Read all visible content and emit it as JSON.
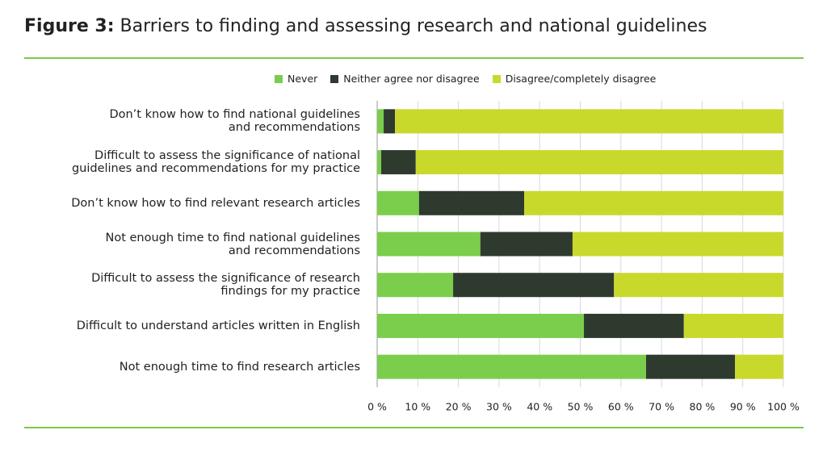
{
  "chart_data": {
    "type": "stacked-bar-horizontal",
    "title_label": "Figure 3:",
    "title": "Barriers to finding and assessing research and national guidelines",
    "categories": [
      "Don’t know how to find national guidelines\nand recommendations",
      "Difficult to assess the significance of national\nguidelines and recommendations for my practice",
      "Don’t know how to find relevant research articles",
      "Not enough time to find national guidelines\nand recommendations",
      "Difficult to assess the significance of research\nfindings for my practice",
      "Difficult to understand articles written in English",
      "Not enough time to find research articles"
    ],
    "series": [
      {
        "name": "Never",
        "color": "#7ace4c",
        "values": [
          1.6,
          1.0,
          10.3,
          25.4,
          18.7,
          50.9,
          66.2
        ]
      },
      {
        "name": "Neither agree nor disagree",
        "color": "#2f3a2f",
        "values": [
          2.8,
          8.5,
          25.9,
          22.7,
          39.6,
          24.6,
          21.9
        ]
      },
      {
        "name": "Disagree/completely disagree",
        "color": "#c8d92c",
        "values": [
          95.6,
          90.5,
          63.8,
          51.9,
          41.7,
          24.5,
          11.9
        ]
      }
    ],
    "xlim": [
      0,
      100
    ],
    "xticks": [
      {
        "value": 0,
        "label": "0 %"
      },
      {
        "value": 10,
        "label": "10 %"
      },
      {
        "value": 20,
        "label": "20 %"
      },
      {
        "value": 30,
        "label": "30 %"
      },
      {
        "value": 40,
        "label": "40 %"
      },
      {
        "value": 50,
        "label": "50 %"
      },
      {
        "value": 60,
        "label": "60 %"
      },
      {
        "value": 70,
        "label": "70 %"
      },
      {
        "value": 80,
        "label": "80 %"
      },
      {
        "value": 90,
        "label": "90 %"
      },
      {
        "value": 100,
        "label": "100 %"
      }
    ],
    "grid": true
  }
}
